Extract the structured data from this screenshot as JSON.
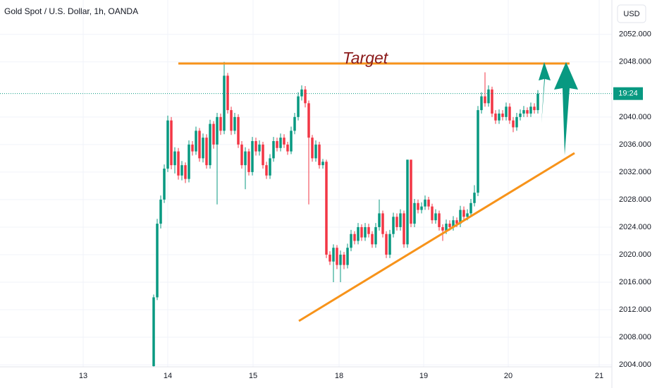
{
  "chart_data": {
    "type": "candlestick",
    "title": "Gold Spot / U.S. Dollar, 1h, OANDA",
    "currency": "USD",
    "countdown": "19:24",
    "current_price": 2043.4,
    "annotation": "Target",
    "up_color": "#089981",
    "down_color": "#f23645",
    "grid": true,
    "xlim": [
      -43.6,
      130
    ],
    "xticks": [
      {
        "value": -20,
        "label": "13"
      },
      {
        "value": 4,
        "label": "14"
      },
      {
        "value": 28.2,
        "label": "15"
      },
      {
        "value": 52.6,
        "label": "18"
      },
      {
        "value": 76.6,
        "label": "19"
      },
      {
        "value": 100.6,
        "label": "20"
      },
      {
        "value": 126.4,
        "label": "21"
      }
    ],
    "ylim": [
      2003.7,
      2057
    ],
    "yticks": [
      {
        "value": 2004,
        "label": "2004.000"
      },
      {
        "value": 2008,
        "label": "2008.000"
      },
      {
        "value": 2012,
        "label": "2012.000"
      },
      {
        "value": 2016,
        "label": "2016.000"
      },
      {
        "value": 2020,
        "label": "2020.000"
      },
      {
        "value": 2024,
        "label": "2024.000"
      },
      {
        "value": 2028,
        "label": "2028.000"
      },
      {
        "value": 2032,
        "label": "2032.000"
      },
      {
        "value": 2036,
        "label": "2036.000"
      },
      {
        "value": 2040,
        "label": "2040.000"
      },
      {
        "value": 2048,
        "label": "2048.000"
      },
      {
        "value": 2052,
        "label": "2052.000"
      }
    ],
    "ohlc": [
      [
        2003.8,
        2014.2,
        2003.7,
        2013.8
      ],
      [
        2013.8,
        2025.2,
        2013.4,
        2024.5
      ],
      [
        2024.5,
        2028.6,
        2023.8,
        2028
      ],
      [
        2028,
        2033.1,
        2027.5,
        2032.5
      ],
      [
        2032.5,
        2040.2,
        2032,
        2039.5
      ],
      [
        2039.5,
        2040,
        2032.4,
        2033
      ],
      [
        2033,
        2035.6,
        2031.8,
        2035
      ],
      [
        2035,
        2035.5,
        2030.9,
        2031.5
      ],
      [
        2031.5,
        2033.6,
        2030.8,
        2033
      ],
      [
        2033,
        2033.4,
        2030.4,
        2031
      ],
      [
        2031,
        2036.6,
        2030.5,
        2036
      ],
      [
        2036,
        2036.5,
        2034.4,
        2035
      ],
      [
        2035,
        2038.6,
        2034.5,
        2038
      ],
      [
        2038,
        2038.4,
        2033.5,
        2034
      ],
      [
        2034,
        2037.6,
        2033.4,
        2037
      ],
      [
        2037,
        2037.5,
        2032.5,
        2033
      ],
      [
        2033,
        2039.6,
        2032.5,
        2039
      ],
      [
        2039,
        2039.4,
        2035.4,
        2036
      ],
      [
        2036,
        2040.6,
        2027.3,
        2040
      ],
      [
        2040,
        2040.5,
        2037.4,
        2038
      ],
      [
        2038,
        2048,
        2037.5,
        2046
      ],
      [
        2046,
        2046.4,
        2040.5,
        2041
      ],
      [
        2041,
        2041.5,
        2037.4,
        2038
      ],
      [
        2038,
        2040.6,
        2037.5,
        2040
      ],
      [
        2040,
        2040.4,
        2035.5,
        2036
      ],
      [
        2036,
        2036.5,
        2032.5,
        2033
      ],
      [
        2033,
        2035.6,
        2029.5,
        2035
      ],
      [
        2035,
        2035.4,
        2031.5,
        2032
      ],
      [
        2032,
        2037.1,
        2031.5,
        2036.5
      ],
      [
        2036.5,
        2037,
        2034.4,
        2035
      ],
      [
        2035,
        2036.6,
        2034.4,
        2036
      ],
      [
        2036,
        2036.4,
        2032.5,
        2033
      ],
      [
        2033,
        2033.5,
        2031,
        2031.5
      ],
      [
        2031.5,
        2034.6,
        2031,
        2034
      ],
      [
        2034,
        2037.1,
        2033.5,
        2036.5
      ],
      [
        2036.5,
        2037,
        2035,
        2035.5
      ],
      [
        2035.5,
        2037.6,
        2035,
        2037
      ],
      [
        2037,
        2037.5,
        2035.5,
        2036
      ],
      [
        2036,
        2036.4,
        2034.5,
        2035
      ],
      [
        2035,
        2038.6,
        2034.6,
        2038
      ],
      [
        2038,
        2040.6,
        2037.5,
        2040
      ],
      [
        2040,
        2043.6,
        2039.5,
        2043
      ],
      [
        2043,
        2044.6,
        2042.4,
        2044
      ],
      [
        2044,
        2044.5,
        2041.4,
        2042
      ],
      [
        2042,
        2042.4,
        2027.3,
        2037
      ],
      [
        2037,
        2037.4,
        2033.5,
        2034
      ],
      [
        2034,
        2036.6,
        2033.5,
        2036
      ],
      [
        2036,
        2036.4,
        2032.5,
        2033
      ],
      [
        2033,
        2033.9,
        2032.5,
        2033.5
      ],
      [
        2033.5,
        2033.8,
        2019.5,
        2020
      ],
      [
        2020,
        2020.5,
        2018.5,
        2019
      ],
      [
        2019,
        2021.5,
        2016,
        2021
      ],
      [
        2021,
        2021.4,
        2017.9,
        2018.5
      ],
      [
        2018.5,
        2020.6,
        2016,
        2020
      ],
      [
        2020,
        2020.4,
        2017.9,
        2018.5
      ],
      [
        2018.5,
        2021.6,
        2018,
        2021
      ],
      [
        2021,
        2023.6,
        2020.5,
        2023
      ],
      [
        2023,
        2023.4,
        2021.5,
        2022
      ],
      [
        2022,
        2024.6,
        2021.5,
        2024
      ],
      [
        2024,
        2024.4,
        2022,
        2022.5
      ],
      [
        2022.5,
        2024.6,
        2022,
        2024
      ],
      [
        2024,
        2024.5,
        2022.5,
        2023
      ],
      [
        2023,
        2023.4,
        2021,
        2021.5
      ],
      [
        2021.5,
        2024.6,
        2021,
        2024
      ],
      [
        2024,
        2028,
        2023.5,
        2026
      ],
      [
        2026,
        2026.4,
        2022.5,
        2023
      ],
      [
        2023,
        2023.4,
        2019.5,
        2020
      ],
      [
        2020,
        2023.6,
        2019.5,
        2023
      ],
      [
        2023,
        2026.1,
        2022.5,
        2025.5
      ],
      [
        2025.5,
        2026,
        2023.5,
        2024
      ],
      [
        2024,
        2026.6,
        2023.5,
        2026
      ],
      [
        2026,
        2026.4,
        2021,
        2021.5
      ],
      [
        2021.5,
        2033.8,
        2021,
        2033.8
      ],
      [
        2033.8,
        2033.8,
        2024,
        2024.5
      ],
      [
        2024.5,
        2028.1,
        2024,
        2027.5
      ],
      [
        2027.5,
        2028,
        2026,
        2026.5
      ],
      [
        2026.5,
        2027.6,
        2026,
        2027
      ],
      [
        2027,
        2028.6,
        2026.5,
        2028
      ],
      [
        2028,
        2028.4,
        2026.5,
        2027
      ],
      [
        2027,
        2027.4,
        2024.5,
        2025
      ],
      [
        2025,
        2026.6,
        2024.5,
        2026
      ],
      [
        2026,
        2026.4,
        2023.5,
        2024
      ],
      [
        2024,
        2024.4,
        2022,
        2023.5
      ],
      [
        2023.5,
        2025.1,
        2023,
        2024.5
      ],
      [
        2024.5,
        2025,
        2023.5,
        2024
      ],
      [
        2024,
        2025.6,
        2023.5,
        2025
      ],
      [
        2025,
        2025.4,
        2024,
        2024.5
      ],
      [
        2024.5,
        2027.1,
        2024,
        2026.5
      ],
      [
        2026.5,
        2027,
        2025,
        2025.5
      ],
      [
        2025.5,
        2026.6,
        2025,
        2026
      ],
      [
        2026,
        2028.1,
        2025.5,
        2027.5
      ],
      [
        2027.5,
        2030.1,
        2027,
        2029
      ],
      [
        2029,
        2041.6,
        2028.5,
        2041
      ],
      [
        2041,
        2043.6,
        2040.5,
        2043
      ],
      [
        2043,
        2046.5,
        2041.5,
        2042
      ],
      [
        2042,
        2044.6,
        2041.5,
        2044
      ],
      [
        2044,
        2044.4,
        2040,
        2040.5
      ],
      [
        2040.5,
        2041,
        2039,
        2039.5
      ],
      [
        2039.5,
        2041.1,
        2039,
        2040.5
      ],
      [
        2040.5,
        2041,
        2039.5,
        2040
      ],
      [
        2040,
        2042.1,
        2039.5,
        2041.5
      ],
      [
        2041.5,
        2042,
        2039,
        2039.5
      ],
      [
        2039.5,
        2040,
        2037.8,
        2038.5
      ],
      [
        2038.5,
        2040.6,
        2038,
        2040
      ],
      [
        2040,
        2041.1,
        2039.5,
        2040.5
      ],
      [
        2040.5,
        2041.6,
        2040,
        2041
      ],
      [
        2041,
        2041.4,
        2040,
        2040.5
      ],
      [
        2040.5,
        2042.1,
        2040,
        2041.5
      ],
      [
        2041.5,
        2042,
        2040.5,
        2041
      ],
      [
        2041,
        2043.9,
        2040.5,
        2043.4
      ]
    ]
  }
}
